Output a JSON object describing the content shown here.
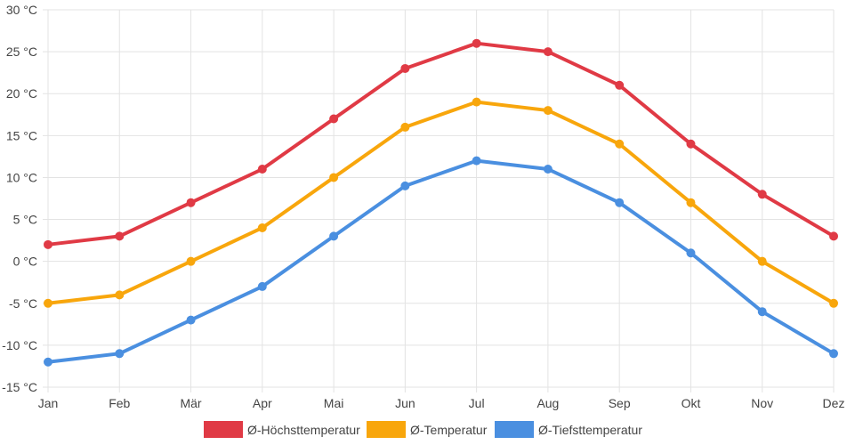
{
  "chart_data": {
    "type": "line",
    "title": "",
    "xlabel": "",
    "ylabel": "",
    "unit": "°C",
    "ylim": [
      -15,
      30
    ],
    "ytick_step": 5,
    "categories": [
      "Jan",
      "Feb",
      "Mär",
      "Apr",
      "Mai",
      "Jun",
      "Jul",
      "Aug",
      "Sep",
      "Okt",
      "Nov",
      "Dez"
    ],
    "grid": true,
    "legend_position": "bottom",
    "series": [
      {
        "name": "Ø-Höchsttemperatur",
        "color": "#e03a45",
        "values": [
          2,
          3,
          7,
          11,
          17,
          23,
          26,
          25,
          21,
          14,
          8,
          3
        ]
      },
      {
        "name": "Ø-Temperatur",
        "color": "#f8a60c",
        "values": [
          -5,
          -4,
          0,
          4,
          10,
          16,
          19,
          18,
          14,
          7,
          0,
          -5
        ]
      },
      {
        "name": "Ø-Tiefsttemperatur",
        "color": "#4a8fe0",
        "values": [
          -12,
          -11,
          -7,
          -3,
          3,
          9,
          12,
          11,
          7,
          1,
          -6,
          -11
        ]
      }
    ]
  }
}
